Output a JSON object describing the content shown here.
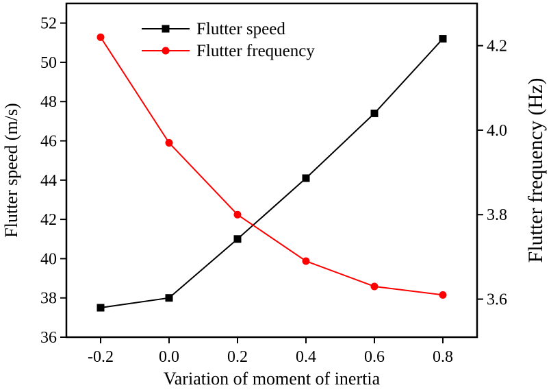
{
  "chart_data": {
    "type": "line",
    "xlabel": "Variation of moment of inertia",
    "ylabel": "Flutter speed (m/s)",
    "y2label": "Flutter frequency (Hz)",
    "x": [
      -0.2,
      0.0,
      0.2,
      0.4,
      0.6,
      0.8
    ],
    "x_ticks": [
      "-0.2",
      "0.0",
      "0.2",
      "0.4",
      "0.6",
      "0.8"
    ],
    "xlim": [
      -0.3,
      0.9
    ],
    "ylim": [
      36,
      53
    ],
    "y_ticks": [
      "36",
      "38",
      "40",
      "42",
      "44",
      "46",
      "48",
      "50",
      "52"
    ],
    "y2lim": [
      3.51,
      4.3
    ],
    "y2_ticks": [
      "3.6",
      "3.8",
      "4.0",
      "4.2"
    ],
    "legend_position": "top-center",
    "series": [
      {
        "name": "Flutter speed",
        "axis": "left",
        "marker": "square",
        "color": "#000000",
        "values": [
          37.5,
          38.0,
          41.0,
          44.1,
          47.4,
          51.2
        ]
      },
      {
        "name": "Flutter frequency",
        "axis": "right",
        "marker": "circle",
        "color": "#ff0000",
        "values": [
          4.22,
          3.97,
          3.8,
          3.69,
          3.63,
          3.61
        ]
      }
    ]
  }
}
